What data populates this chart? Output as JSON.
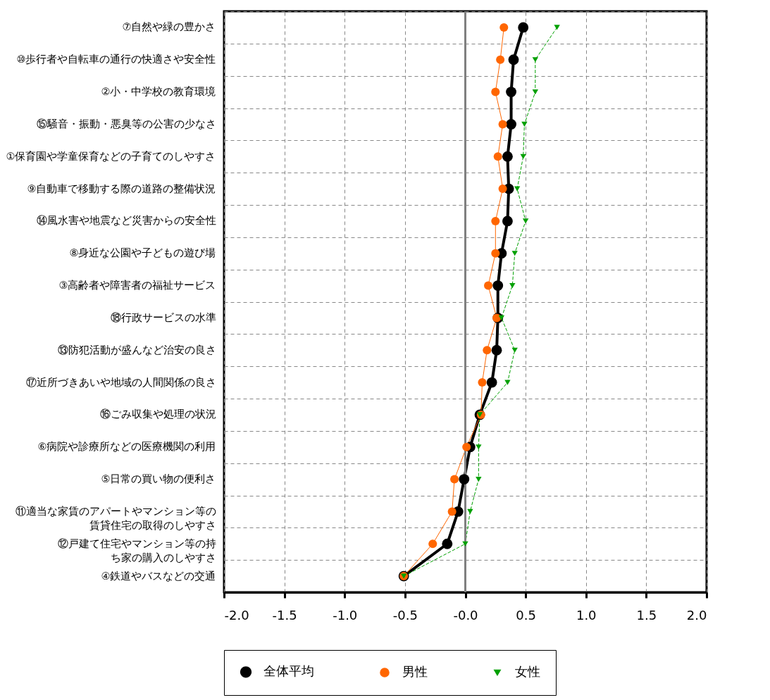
{
  "chart_data": {
    "type": "line",
    "orientation": "horizontal",
    "categories": [
      "⑦自然や緑の豊かさ",
      "⑩歩行者や自転車の通行の快適さや安全性",
      "②小・中学校の教育環境",
      "⑮騒音・振動・悪臭等の公害の少なさ",
      "①保育園や学童保育などの子育てのしやすさ",
      "⑨自動車で移動する際の道路の整備状況",
      "⑭風水害や地震など災害からの安全性",
      "⑧身近な公園や子どもの遊び場",
      "③高齢者や障害者の福祉サービス",
      "⑱行政サービスの水準",
      "⑬防犯活動が盛んなど治安の良さ",
      "⑰近所づきあいや地域の人間関係の良さ",
      "⑯ごみ収集や処理の状況",
      "⑥病院や診療所などの医療機関の利用",
      "⑤日常の買い物の便利さ",
      "⑪適当な家賃のアパートやマンション等の賃貸住宅の取得のしやすさ",
      "⑫戸建て住宅やマンション等の持ち家の購入のしやすさ",
      "④鉄道やバスなどの交通"
    ],
    "series": [
      {
        "name": "全体平均",
        "color": "#000000",
        "marker": "circle",
        "line_style": "solid",
        "values": [
          0.48,
          0.4,
          0.38,
          0.38,
          0.35,
          0.36,
          0.35,
          0.3,
          0.27,
          0.27,
          0.26,
          0.22,
          0.12,
          0.04,
          -0.01,
          -0.06,
          -0.15,
          -0.51
        ]
      },
      {
        "name": "男性",
        "color": "#ff6600",
        "marker": "circle",
        "line_style": "solid",
        "values": [
          0.32,
          0.29,
          0.25,
          0.31,
          0.27,
          0.31,
          0.25,
          0.25,
          0.19,
          0.26,
          0.18,
          0.14,
          0.13,
          0.01,
          -0.09,
          -0.11,
          -0.27,
          -0.51
        ]
      },
      {
        "name": "女性",
        "color": "#00a000",
        "marker": "triangle",
        "line_style": "dashed",
        "values": [
          0.76,
          0.58,
          0.58,
          0.49,
          0.48,
          0.43,
          0.5,
          0.41,
          0.39,
          0.3,
          0.41,
          0.35,
          0.12,
          0.11,
          0.11,
          0.04,
          0.0,
          -0.51
        ]
      }
    ],
    "xlim": [
      -2,
      2
    ],
    "xticks": [
      {
        "value": -2,
        "label": "-2.0"
      },
      {
        "value": -1.5,
        "label": "-1.5"
      },
      {
        "value": -1,
        "label": "-1.0"
      },
      {
        "value": -0.5,
        "label": "-0.5"
      },
      {
        "value": 0,
        "label": "-0.0"
      },
      {
        "value": 0.5,
        "label": "0.5"
      },
      {
        "value": 1,
        "label": "1.0"
      },
      {
        "value": 1.5,
        "label": "1.5"
      },
      {
        "value": 2,
        "label": "2.0"
      }
    ],
    "ref_lines": [
      {
        "axis": "x",
        "value": 0,
        "color": "#808080"
      }
    ],
    "grid": true,
    "legend": "bottom"
  }
}
